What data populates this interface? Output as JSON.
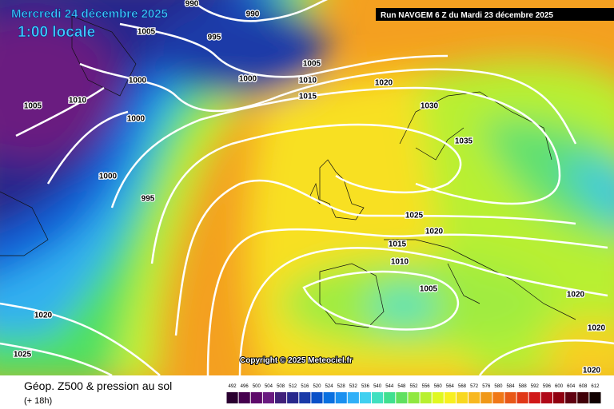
{
  "header": {
    "date": "Mercredi 24 décembre 2025",
    "time": "1:00 locale",
    "run": "Run NAVGEM 6 Z du Mardi 23 décembre 2025"
  },
  "copyright": "Copyright © 2025 Meteociel.fr",
  "footer": {
    "title": "Géop. Z500 & pression au sol",
    "lead": "(+ 18h)"
  },
  "isobar_labels": [
    990,
    990,
    1005,
    995,
    1000,
    1005,
    1000,
    1010,
    1015,
    1020,
    1005,
    1010,
    1000,
    1030,
    1035,
    1000,
    995,
    1025,
    1020,
    1015,
    1010,
    1005,
    1020,
    1020,
    1020,
    1025,
    1020
  ],
  "scale": {
    "values": [
      492,
      496,
      500,
      504,
      508,
      512,
      516,
      520,
      524,
      528,
      532,
      536,
      540,
      544,
      548,
      552,
      556,
      560,
      564,
      568,
      572,
      576,
      580,
      584,
      588,
      592,
      596,
      600,
      604,
      608,
      612
    ],
    "colors": [
      "#2a0030",
      "#45004e",
      "#5e0a6a",
      "#6a1a80",
      "#40207a",
      "#28288c",
      "#1a3aa8",
      "#0a50c8",
      "#0a70e0",
      "#1a90f0",
      "#30b0f8",
      "#40d0f0",
      "#40e0c0",
      "#40e090",
      "#60e060",
      "#90e840",
      "#b8f030",
      "#e0f820",
      "#f8f020",
      "#f8d820",
      "#f8b820",
      "#f09818",
      "#f07818",
      "#e85818",
      "#e03818",
      "#d01818",
      "#b00818",
      "#900010",
      "#600010",
      "#400008",
      "#100000"
    ]
  }
}
